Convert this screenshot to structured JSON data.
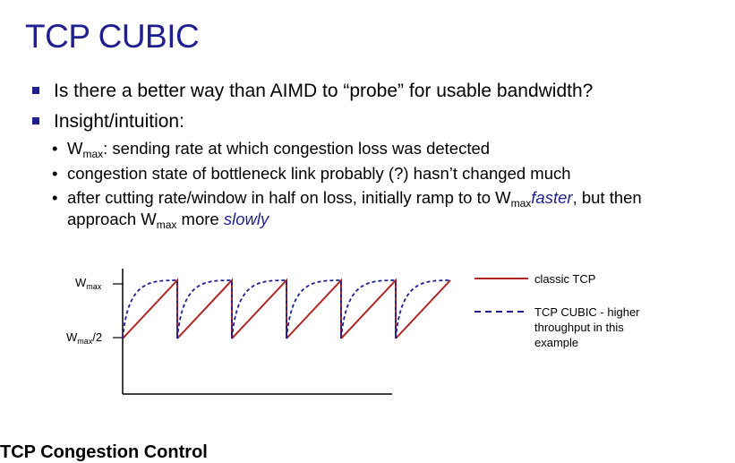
{
  "title": "TCP CUBIC",
  "bullets": [
    {
      "text": "Is there a better way than AIMD to “probe” for usable bandwidth?"
    },
    {
      "text": "Insight/intuition:"
    }
  ],
  "sub_bullets": {
    "wmax_def": {
      "W": "W",
      "sub": "max",
      "rest": ": sending rate at which congestion loss was detected"
    },
    "congestion": "congestion state of bottleneck link probably (?) hasn’t changed much",
    "ramp": {
      "line1_pre": "after cutting rate/window in half on loss, initially ramp to to W",
      "sub": "max",
      "faster": "faster",
      "line1_post": ", but then",
      "line2_pre": "approach W",
      "line2_sub": "max",
      "line2_mid": " more ",
      "slowly": "slowly"
    }
  },
  "chart": {
    "y_label_top": {
      "W": "W",
      "sub": "max"
    },
    "y_label_mid": {
      "W": "W",
      "sub": "max",
      "rest": "/2"
    },
    "legend": {
      "classic": "classic TCP",
      "cubic_lines": [
        "TCP CUBIC - higher",
        "throughput in this",
        "example"
      ]
    },
    "colors": {
      "classic": "#b22222",
      "cubic": "#1f1f8f"
    },
    "cycles": 6
  },
  "footer": "TCP Congestion Control"
}
